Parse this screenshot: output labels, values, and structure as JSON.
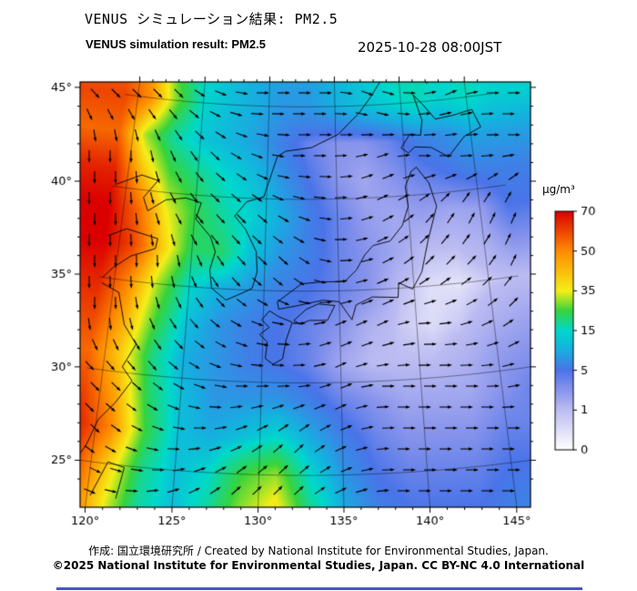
{
  "header": {
    "title_jp": "VENUS シミュレーション結果: PM2.5",
    "title_en": "VENUS simulation result: PM2.5",
    "timestamp": "2025-10-28 08:00JST"
  },
  "footer": {
    "credit": "作成: 国立環境研究所 / Created by National Institute for Environmental Studies, Japan.",
    "license": "©2025 National Institute for Environmental Studies, Japan. CC BY-NC 4.0 International"
  },
  "colorbar": {
    "unit": "µg/m³",
    "tick_values": [
      0,
      1,
      5,
      15,
      35,
      50,
      70
    ],
    "tick_labels": [
      "0",
      "1",
      "5",
      "15",
      "35",
      "50",
      "70"
    ]
  },
  "map": {
    "x_tick_lons": [
      120,
      125,
      130,
      135,
      140,
      145
    ],
    "x_tick_labels": [
      "120°",
      "125°",
      "130°",
      "135°",
      "140°",
      "145°"
    ],
    "y_tick_lats": [
      25,
      30,
      35,
      40,
      45
    ],
    "y_tick_labels": [
      "25°",
      "30°",
      "35°",
      "40°",
      "45°"
    ]
  },
  "chart_data": {
    "type": "heatmap",
    "title": "VENUS simulation result: PM2.5",
    "units": "µg/m³",
    "lon_range": [
      119,
      147
    ],
    "lat_range": [
      23,
      47
    ],
    "colorscale": {
      "stops": [
        {
          "v": 0,
          "c": "#ffffff"
        },
        {
          "v": 1,
          "c": "#bcbcf2"
        },
        {
          "v": 3,
          "c": "#8894ec"
        },
        {
          "v": 5,
          "c": "#4a74e8"
        },
        {
          "v": 10,
          "c": "#17aee0"
        },
        {
          "v": 15,
          "c": "#00d8cc"
        },
        {
          "v": 25,
          "c": "#37d33c"
        },
        {
          "v": 35,
          "c": "#f5ee18"
        },
        {
          "v": 50,
          "c": "#ff8c00"
        },
        {
          "v": 70,
          "c": "#db0000"
        }
      ]
    },
    "grid": {
      "lons": [
        119,
        121,
        123,
        125,
        127,
        129,
        131,
        133,
        135,
        137,
        139,
        141,
        143,
        145,
        147
      ],
      "lats": [
        47,
        45,
        43,
        41,
        39,
        37,
        35,
        33,
        31,
        29,
        27,
        25,
        23
      ],
      "pm25": [
        [
          55,
          45,
          25,
          15,
          12,
          10,
          9,
          9,
          11,
          13,
          16,
          18,
          16,
          17,
          15
        ],
        [
          60,
          50,
          28,
          15,
          12,
          10,
          8,
          8,
          10,
          12,
          14,
          16,
          14,
          16,
          14
        ],
        [
          55,
          30,
          18,
          13,
          11,
          9,
          6,
          4,
          3,
          3,
          4,
          6,
          7,
          9,
          9
        ],
        [
          65,
          42,
          26,
          20,
          15,
          12,
          8,
          5,
          3,
          2,
          3,
          4,
          5,
          6,
          6
        ],
        [
          70,
          55,
          35,
          24,
          18,
          14,
          10,
          6,
          4,
          2.5,
          2,
          2.5,
          2,
          2.5,
          5
        ],
        [
          70,
          60,
          40,
          22,
          22,
          12,
          8,
          6,
          4,
          3,
          2,
          1,
          1,
          1.5,
          3
        ],
        [
          65,
          50,
          30,
          15,
          10,
          8,
          6,
          5,
          4,
          3,
          1,
          0.5,
          0.4,
          0.8,
          1
        ],
        [
          60,
          45,
          25,
          12,
          8,
          6,
          5,
          4,
          3,
          1.5,
          0.8,
          0.5,
          0.8,
          1.5,
          2
        ],
        [
          55,
          40,
          20,
          10,
          8,
          6,
          5,
          4,
          2,
          1,
          1,
          1,
          1.5,
          2.5,
          3
        ],
        [
          60,
          45,
          22,
          12,
          8,
          8,
          8,
          6,
          4,
          3,
          2,
          2,
          2,
          3,
          4
        ],
        [
          65,
          50,
          25,
          12,
          10,
          12,
          15,
          10,
          6,
          4,
          3,
          3,
          3,
          4,
          4
        ],
        [
          60,
          40,
          20,
          12,
          15,
          25,
          30,
          15,
          8,
          5,
          4,
          4,
          4,
          5,
          5
        ],
        [
          55,
          35,
          18,
          12,
          18,
          30,
          38,
          20,
          10,
          6,
          5,
          5,
          5,
          6,
          6
        ]
      ]
    },
    "wind": {
      "lons": [
        120,
        123,
        126,
        129,
        132,
        135,
        138,
        141,
        144,
        147
      ],
      "lats": [
        45,
        42,
        39,
        36,
        33,
        30,
        27,
        24
      ],
      "u": [
        [
          0.7,
          0.7,
          0.9,
          1,
          1,
          1,
          0.9,
          1,
          0.9,
          1
        ],
        [
          0,
          0.4,
          0.7,
          0.9,
          1,
          1,
          0.9,
          1,
          1,
          1
        ],
        [
          0,
          0.4,
          0.7,
          0.7,
          0.9,
          1,
          0.9,
          0.7,
          0.4,
          0.4
        ],
        [
          0,
          0,
          0.4,
          0.7,
          0.7,
          1,
          0.9,
          0.7,
          0.7,
          0.4
        ],
        [
          0,
          0.4,
          0.7,
          0.9,
          1,
          0.9,
          0.9,
          1,
          0.9,
          0.7
        ],
        [
          0.7,
          0.7,
          0.9,
          1,
          1,
          0.9,
          1,
          1,
          1,
          0.9
        ],
        [
          0.7,
          0.9,
          1,
          0.9,
          0.7,
          0.9,
          1,
          1,
          1,
          1
        ],
        [
          0.9,
          1,
          0.9,
          0.7,
          0.7,
          0.9,
          1,
          1,
          1,
          1
        ]
      ],
      "v": [
        [
          -0.7,
          -0.7,
          -0.4,
          0,
          0,
          0,
          -0.4,
          0,
          0.4,
          0
        ],
        [
          -1,
          -0.9,
          -0.7,
          -0.4,
          0,
          0,
          0.4,
          0,
          0,
          0
        ],
        [
          -1,
          -0.9,
          -0.7,
          -0.7,
          -0.4,
          0,
          0.4,
          0.7,
          0.9,
          0.9
        ],
        [
          -1,
          -1,
          -0.9,
          -0.7,
          -0.7,
          0,
          0.4,
          0.7,
          0.7,
          0.9
        ],
        [
          -1,
          -0.9,
          -0.7,
          -0.4,
          0,
          0.4,
          0.4,
          0,
          0.4,
          0.7
        ],
        [
          -0.7,
          -0.7,
          -0.4,
          0,
          0,
          0.4,
          0,
          0,
          0,
          0.4
        ],
        [
          -0.7,
          -0.4,
          0,
          0.4,
          0.7,
          0.4,
          0,
          0,
          0,
          0
        ],
        [
          -0.4,
          0,
          0.4,
          0.7,
          0.7,
          0.4,
          0,
          0,
          0,
          0
        ]
      ]
    },
    "coastlines": [
      [
        [
          119.2,
          40.1
        ],
        [
          121.0,
          40.8
        ],
        [
          122.2,
          40.6
        ],
        [
          121.3,
          39.6
        ],
        [
          121.7,
          38.9
        ],
        [
          122.9,
          39.6
        ],
        [
          124.3,
          39.8
        ]
      ],
      [
        [
          119.2,
          37.3
        ],
        [
          120.4,
          37.8
        ],
        [
          122.6,
          37.45
        ],
        [
          122.5,
          36.9
        ],
        [
          120.9,
          36.35
        ],
        [
          119.8,
          35.6
        ],
        [
          119.2,
          35.0
        ]
      ],
      [
        [
          119.2,
          34.7
        ],
        [
          120.4,
          34.3
        ],
        [
          121.0,
          32.6
        ],
        [
          121.9,
          31.6
        ],
        [
          121.2,
          30.3
        ],
        [
          121.9,
          29.6
        ],
        [
          121.0,
          28.3
        ],
        [
          120.1,
          27.3
        ],
        [
          119.6,
          25.9
        ],
        [
          119.2,
          25.2
        ]
      ],
      [
        [
          124.3,
          39.8
        ],
        [
          125.4,
          39.6
        ],
        [
          125.1,
          38.7
        ],
        [
          126.2,
          37.8
        ],
        [
          126.6,
          37.0
        ],
        [
          126.3,
          36.0
        ],
        [
          126.5,
          35.0
        ],
        [
          127.5,
          34.4
        ],
        [
          128.5,
          34.8
        ],
        [
          129.2,
          35.1
        ],
        [
          129.5,
          36.0
        ],
        [
          129.4,
          37.1
        ],
        [
          128.6,
          38.3
        ],
        [
          127.8,
          39.0
        ],
        [
          128.6,
          39.8
        ],
        [
          129.8,
          40.1
        ],
        [
          130.7,
          42.3
        ],
        [
          131.3,
          42.6
        ]
      ],
      [
        [
          131.3,
          42.6
        ],
        [
          133.2,
          42.8
        ],
        [
          135.2,
          43.5
        ],
        [
          136.8,
          44.6
        ],
        [
          137.7,
          45.4
        ],
        [
          138.6,
          46.3
        ]
      ],
      [
        [
          140.8,
          41.5
        ],
        [
          141.6,
          40.6
        ],
        [
          142.0,
          39.3
        ],
        [
          141.2,
          37.5
        ],
        [
          140.6,
          35.8
        ],
        [
          139.9,
          34.9
        ],
        [
          139.0,
          35.3
        ],
        [
          138.9,
          34.5
        ],
        [
          137.2,
          34.6
        ],
        [
          136.1,
          34.2
        ],
        [
          135.8,
          33.4
        ],
        [
          135.0,
          34.4
        ],
        [
          133.9,
          34.5
        ],
        [
          132.2,
          34.2
        ],
        [
          131.0,
          34.0
        ],
        [
          130.9,
          34.4
        ],
        [
          132.5,
          35.4
        ],
        [
          133.9,
          35.5
        ],
        [
          135.4,
          35.5
        ],
        [
          136.2,
          36.1
        ],
        [
          136.8,
          36.9
        ],
        [
          137.4,
          37.4
        ],
        [
          138.6,
          37.6
        ],
        [
          139.5,
          38.4
        ],
        [
          140.0,
          39.4
        ],
        [
          139.9,
          40.5
        ],
        [
          140.4,
          41.3
        ],
        [
          140.8,
          41.5
        ]
      ],
      [
        [
          130.4,
          33.9
        ],
        [
          131.0,
          33.6
        ],
        [
          131.9,
          33.3
        ],
        [
          131.5,
          32.3
        ],
        [
          131.3,
          31.3
        ],
        [
          130.7,
          31.0
        ],
        [
          130.2,
          31.3
        ],
        [
          130.3,
          32.2
        ],
        [
          129.8,
          32.6
        ],
        [
          130.4,
          33.0
        ],
        [
          129.9,
          33.4
        ],
        [
          130.4,
          33.9
        ]
      ],
      [
        [
          134.7,
          34.2
        ],
        [
          134.2,
          33.4
        ],
        [
          133.0,
          33.4
        ],
        [
          132.4,
          33.2
        ],
        [
          132.0,
          33.4
        ],
        [
          132.8,
          34.0
        ],
        [
          133.6,
          34.3
        ],
        [
          134.7,
          34.2
        ]
      ],
      [
        [
          141.0,
          45.4
        ],
        [
          141.7,
          44.8
        ],
        [
          142.5,
          44.0
        ],
        [
          143.8,
          44.1
        ],
        [
          145.3,
          44.3
        ],
        [
          145.8,
          43.3
        ],
        [
          144.5,
          42.9
        ],
        [
          143.2,
          41.9
        ],
        [
          142.0,
          42.5
        ],
        [
          140.8,
          42.6
        ],
        [
          140.3,
          42.3
        ],
        [
          139.8,
          42.6
        ],
        [
          140.5,
          43.3
        ],
        [
          141.3,
          43.2
        ],
        [
          141.5,
          44.0
        ],
        [
          141.0,
          45.4
        ]
      ],
      [
        [
          120.2,
          23.2
        ],
        [
          121.0,
          25.1
        ],
        [
          122.0,
          24.9
        ],
        [
          121.7,
          23.2
        ]
      ],
      [
        [
          141.7,
          46.3
        ],
        [
          142.1,
          45.95
        ],
        [
          142.6,
          46.3
        ]
      ]
    ]
  }
}
